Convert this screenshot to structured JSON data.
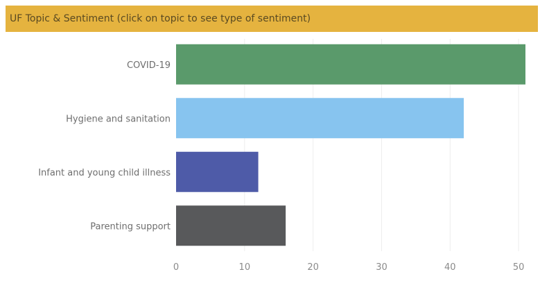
{
  "header": {
    "title": "UF Topic & Sentiment (click on topic to see type of sentiment)"
  },
  "colors": {
    "header_bg": "#e5b33f",
    "gridline": "#ededed"
  },
  "chart_data": {
    "type": "bar",
    "orientation": "horizontal",
    "title": "UF Topic & Sentiment (click on topic to see type of sentiment)",
    "categories": [
      "COVID-19",
      "Hygiene and sanitation",
      "Infant and young child illness",
      "Parenting support"
    ],
    "values": [
      51,
      42,
      12,
      16
    ],
    "colors": [
      "#5a9a6b",
      "#87c4ef",
      "#4e5ba8",
      "#58595b"
    ],
    "xlim": [
      0,
      51
    ],
    "xticks": [
      0,
      10,
      20,
      30,
      40,
      50
    ],
    "grid": true,
    "xlabel": "",
    "ylabel": ""
  }
}
